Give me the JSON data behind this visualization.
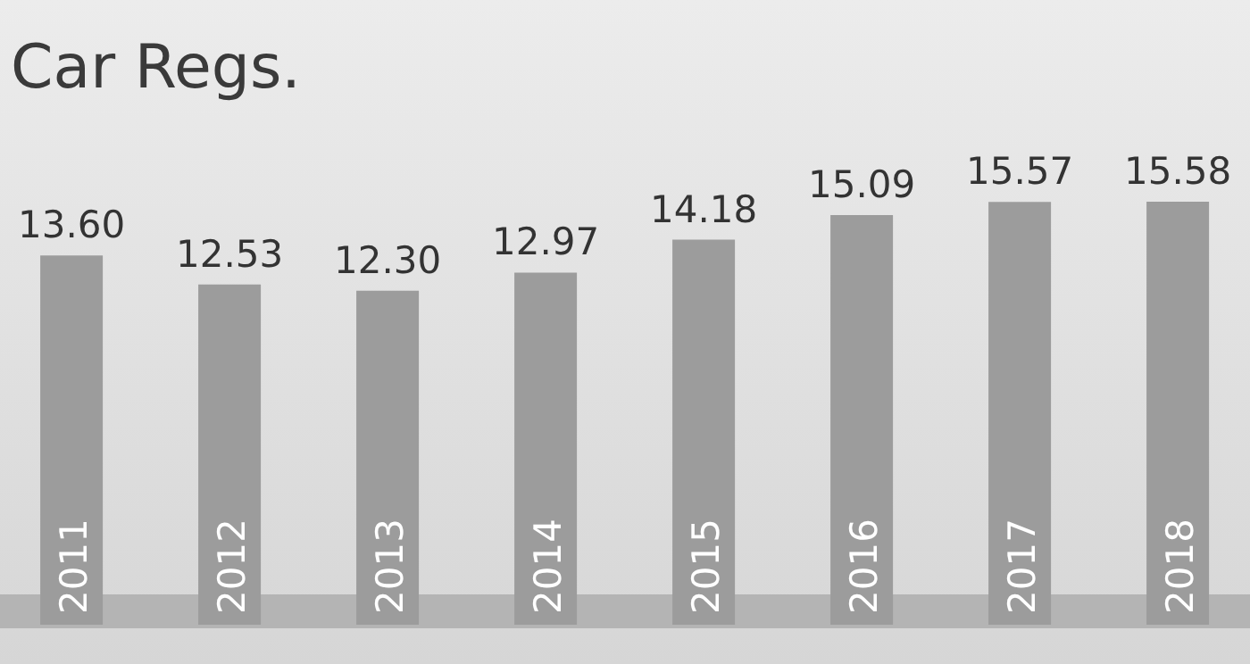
{
  "chart_data": {
    "type": "bar",
    "title": "Car Regs.",
    "categories": [
      "2011",
      "2012",
      "2013",
      "2014",
      "2015",
      "2016",
      "2017",
      "2018"
    ],
    "values": [
      13.6,
      12.53,
      12.3,
      12.97,
      14.18,
      15.09,
      15.57,
      15.58
    ],
    "value_labels": [
      "13.60",
      "12.53",
      "12.30",
      "12.97",
      "14.18",
      "15.09",
      "15.57",
      "15.58"
    ],
    "color": "#9c9c9c",
    "grid": false,
    "legend": false
  }
}
